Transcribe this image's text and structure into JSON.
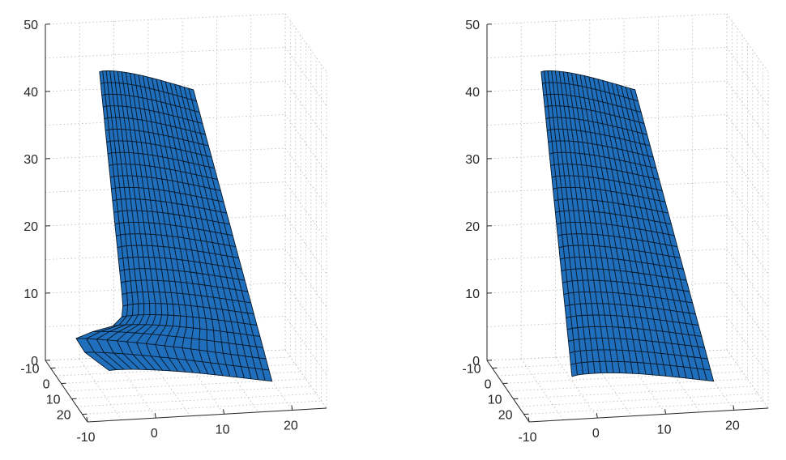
{
  "colors": {
    "surface": "#1f6fbd",
    "edge": "#0a1a2a",
    "axis": "#262626",
    "grid": "#b8b8b8"
  },
  "chart_data": [
    {
      "type": "surface3d",
      "xlim": [
        -10,
        25
      ],
      "ylim": [
        -15,
        25
      ],
      "zlim": [
        0,
        50
      ],
      "x_ticks": [
        "-10",
        "0",
        "10",
        "20"
      ],
      "y_ticks": [
        "-10",
        "0",
        "10",
        "20"
      ],
      "z_ticks": [
        "0",
        "10",
        "20",
        "30",
        "40",
        "50"
      ],
      "grid": true,
      "surface": {
        "rows": 26,
        "cols": 22,
        "root_z": 3,
        "tip_z": 47,
        "bulge": true
      }
    },
    {
      "type": "surface3d",
      "xlim": [
        -10,
        25
      ],
      "ylim": [
        -15,
        25
      ],
      "zlim": [
        0,
        50
      ],
      "x_ticks": [
        "-10",
        "0",
        "10",
        "20"
      ],
      "y_ticks": [
        "-10",
        "0",
        "10",
        "20"
      ],
      "z_ticks": [
        "0",
        "10",
        "20",
        "30",
        "40",
        "50"
      ],
      "grid": true,
      "surface": {
        "rows": 26,
        "cols": 22,
        "root_z": 3,
        "tip_z": 47,
        "bulge": false
      }
    }
  ]
}
